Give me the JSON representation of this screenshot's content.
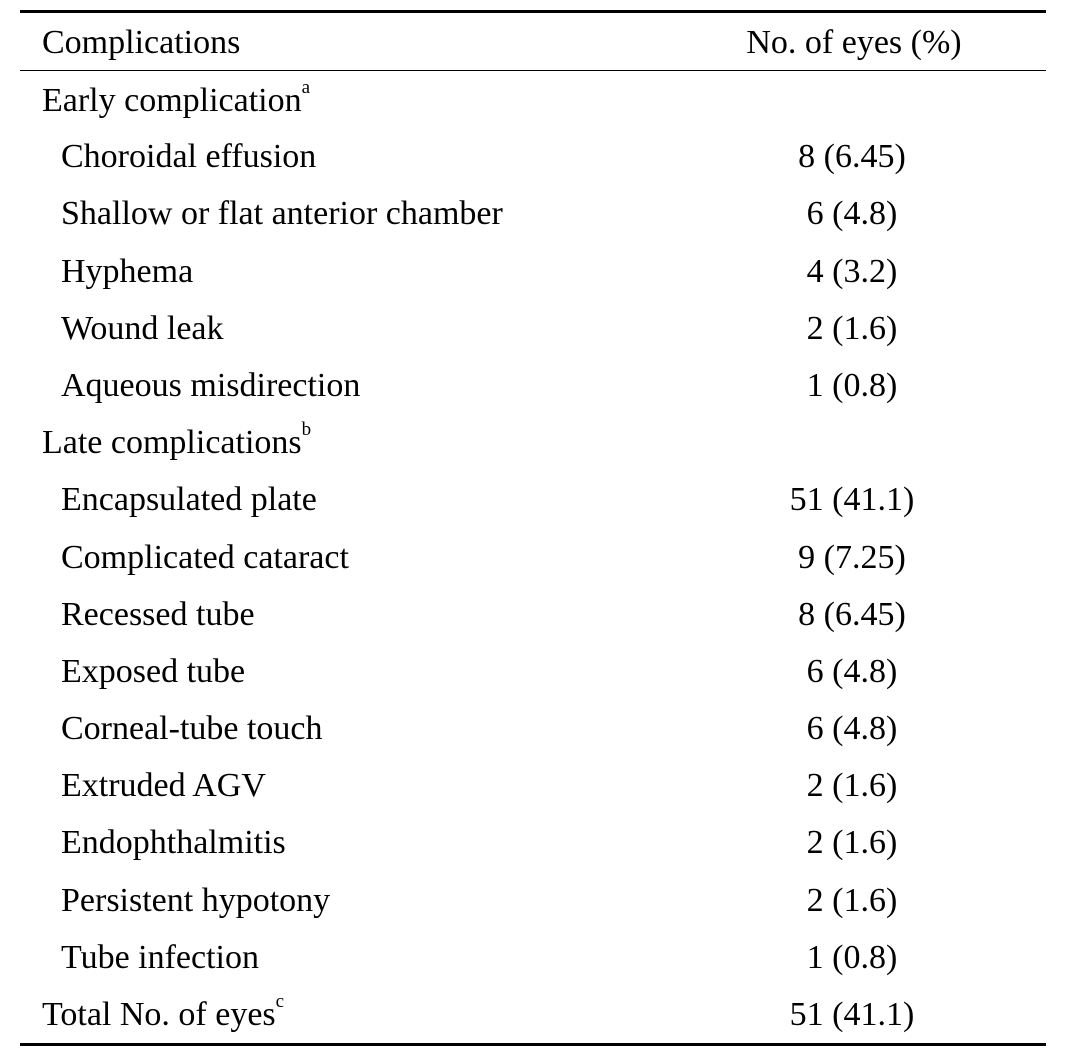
{
  "table": {
    "header": {
      "col1": "Complications",
      "col2": "No. of eyes (%)"
    },
    "sections": [
      {
        "title": "Early complication",
        "sup": "a",
        "rows": [
          {
            "label": "Choroidal effusion",
            "value": "8 (6.45)"
          },
          {
            "label": "Shallow or flat anterior chamber",
            "value": "6 (4.8)"
          },
          {
            "label": "Hyphema",
            "value": "4 (3.2)"
          },
          {
            "label": "Wound leak",
            "value": "2 (1.6)"
          },
          {
            "label": "Aqueous misdirection",
            "value": "1 (0.8)"
          }
        ]
      },
      {
        "title": "Late complications",
        "sup": "b",
        "rows": [
          {
            "label": "Encapsulated plate",
            "value": "51 (41.1)"
          },
          {
            "label": "Complicated cataract",
            "value": "9 (7.25)"
          },
          {
            "label": "Recessed tube",
            "value": "8 (6.45)"
          },
          {
            "label": "Exposed tube",
            "value": "6 (4.8)"
          },
          {
            "label": "Corneal-tube touch",
            "value": "6 (4.8)"
          },
          {
            "label": "Extruded AGV",
            "value": "2 (1.6)"
          },
          {
            "label": "Endophthalmitis",
            "value": "2 (1.6)"
          },
          {
            "label": "Persistent hypotony",
            "value": "2 (1.6)"
          },
          {
            "label": "Tube infection",
            "value": "1 (0.8)"
          }
        ]
      }
    ],
    "total": {
      "label": "Total No. of eyes",
      "sup": "c",
      "value": "51 (41.1)"
    }
  }
}
